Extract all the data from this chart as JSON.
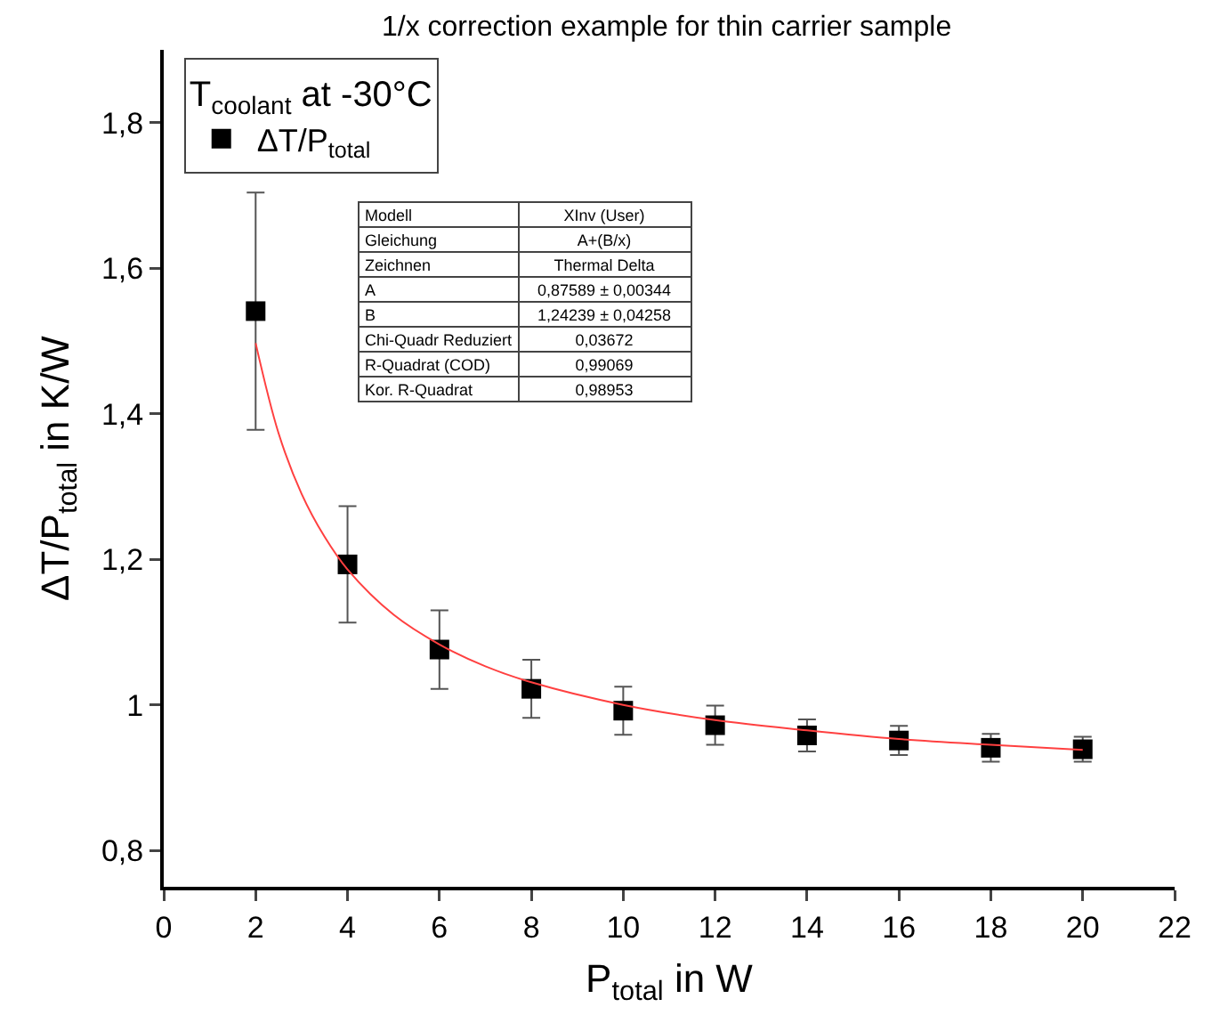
{
  "chart_data": {
    "type": "scatter",
    "title": "1/x correction example for thin carrier sample",
    "xlabel": "P$_{total}$ in W",
    "ylabel": "ΔT/P$_{total}$ in K/W",
    "legend_title": "T$_{coolant}$ at -30°C",
    "series": [
      {
        "name": "ΔT/P$_{total}$",
        "type": "scatter",
        "color": "#000000",
        "marker": "square",
        "x": [
          2,
          4,
          6,
          8,
          10,
          12,
          14,
          16,
          18,
          20
        ],
        "values": [
          1.541,
          1.193,
          1.076,
          1.022,
          0.992,
          0.972,
          0.958,
          0.951,
          0.941,
          0.939
        ],
        "errors": [
          0.163,
          0.08,
          0.054,
          0.04,
          0.033,
          0.027,
          0.022,
          0.02,
          0.019,
          0.017
        ]
      },
      {
        "type": "line",
        "color": "#ff4040",
        "x": [
          2,
          2.5,
          3,
          3.5,
          4,
          5,
          6,
          7,
          8,
          10,
          12,
          14,
          16,
          18,
          20
        ],
        "values": [
          1.497,
          1.373,
          1.29,
          1.231,
          1.186,
          1.124,
          1.083,
          1.053,
          1.031,
          1.0,
          0.979,
          0.965,
          0.953,
          0.945,
          0.938
        ]
      }
    ],
    "xlim": [
      0,
      22
    ],
    "xticks": [
      0,
      2,
      4,
      6,
      8,
      10,
      12,
      14,
      16,
      18,
      20,
      22
    ],
    "ylim": [
      0.75,
      1.9
    ],
    "yticks": [
      {
        "value": 0.8,
        "label": "0,8"
      },
      {
        "value": 1,
        "label": "1"
      },
      {
        "value": 1.2,
        "label": "1,2"
      },
      {
        "value": 1.4,
        "label": "1,4"
      },
      {
        "value": 1.6,
        "label": "1,6"
      },
      {
        "value": 1.8,
        "label": "1,8"
      }
    ],
    "grid": false,
    "legend": "top left",
    "annotations": [
      "Modell",
      "XInv (User)",
      "Gleichung",
      "A+(B/x)",
      "Zeichnen",
      "Thermal Delta",
      "A",
      "0,87589 ± 0,00344",
      "B",
      "1,24239 ± 0,04258",
      "Chi-Quadr Reduziert",
      "0,03672",
      "R-Quadrat (COD)",
      "0,99069",
      "Kor. R-Quadrat",
      "0,98953"
    ]
  }
}
